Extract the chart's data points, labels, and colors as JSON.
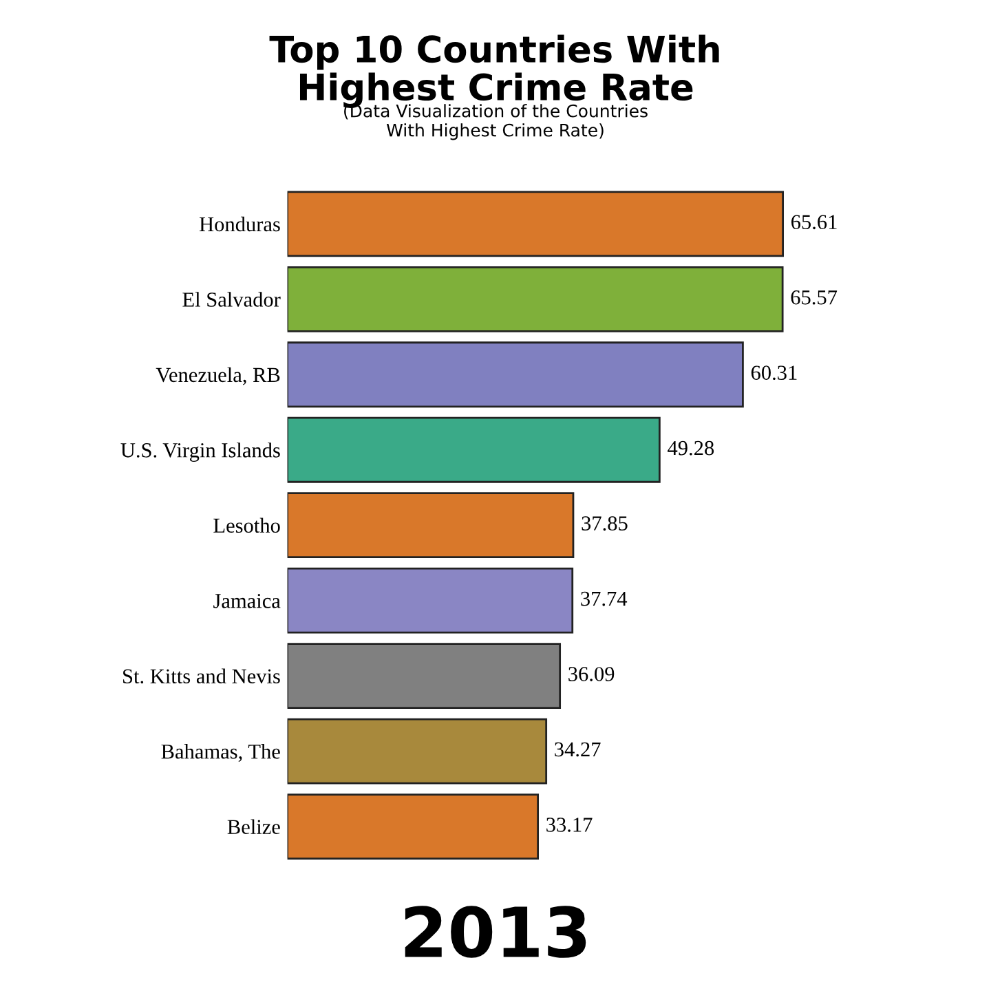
{
  "chart_data": {
    "type": "bar",
    "orientation": "horizontal",
    "title": "Top 10 Countries With\nHighest Crime Rate",
    "subtitle": "(Data Visualization of the Countries\nWith Highest Crime Rate)",
    "categories": [
      "Honduras",
      "El Salvador",
      "Venezuela, RB",
      "U.S. Virgin Islands",
      "Lesotho",
      "Jamaica",
      "St. Kitts and Nevis",
      "Bahamas, The",
      "Belize"
    ],
    "values": [
      65.61,
      65.57,
      60.31,
      49.28,
      37.85,
      37.74,
      36.09,
      34.27,
      33.17
    ],
    "colors": [
      "#d9782a",
      "#7fb03a",
      "#8080c0",
      "#3aaa88",
      "#d9782a",
      "#8a86c4",
      "#808080",
      "#a8893c",
      "#d9782a"
    ],
    "data_labels": true,
    "annotations": [
      "2013"
    ]
  }
}
